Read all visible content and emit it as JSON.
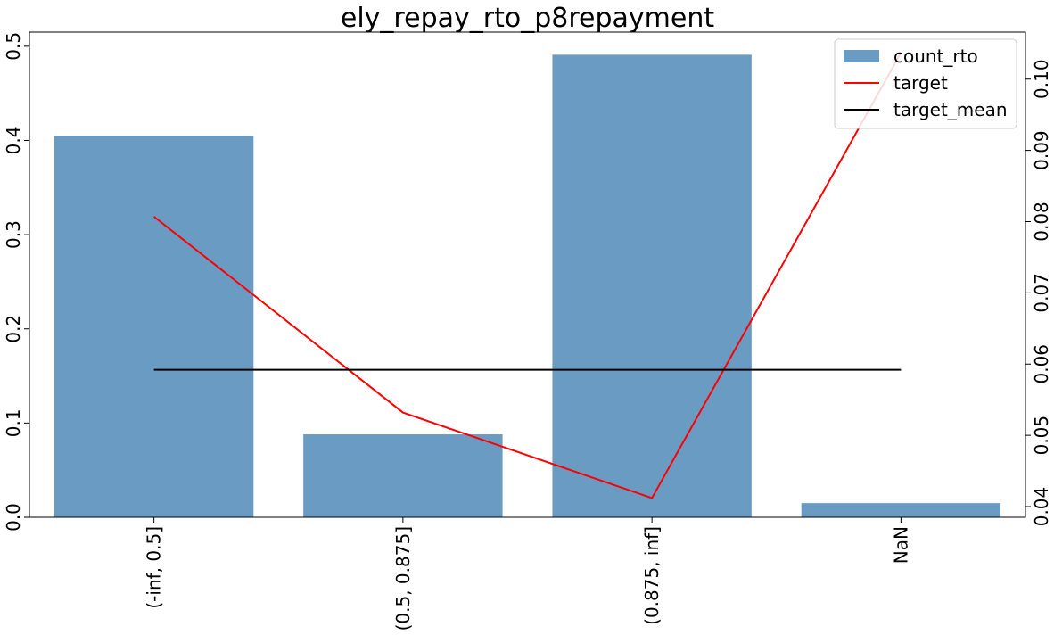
{
  "chart_data": {
    "type": "bar",
    "title": "ely_repay_rto_p8repayment",
    "categories": [
      "(-inf, 0.5]",
      "(0.5, 0.875]",
      "(0.875, inf]",
      "NaN"
    ],
    "series": [
      {
        "name": "count_rto",
        "type": "bar",
        "axis": "left",
        "color": "#6a9bc3",
        "values": [
          0.405,
          0.088,
          0.491,
          0.015
        ]
      },
      {
        "name": "target",
        "type": "line",
        "axis": "right",
        "color": "#ff0000",
        "values": [
          0.0807,
          0.0532,
          0.0412,
          0.1037
        ]
      },
      {
        "name": "target_mean",
        "type": "line",
        "axis": "right",
        "color": "#000000",
        "values": [
          0.0592,
          0.0592,
          0.0592,
          0.0592
        ]
      }
    ],
    "left_axis": {
      "ylim": [
        0,
        0.515
      ],
      "ticks": [
        "0.0",
        "0.1",
        "0.2",
        "0.3",
        "0.4",
        "0.5"
      ]
    },
    "right_axis": {
      "ylim": [
        0.0385,
        0.1066
      ],
      "ticks": [
        "0.04",
        "0.05",
        "0.06",
        "0.07",
        "0.08",
        "0.09",
        "0.10"
      ]
    },
    "legend_position": "top-right",
    "grid": false
  }
}
